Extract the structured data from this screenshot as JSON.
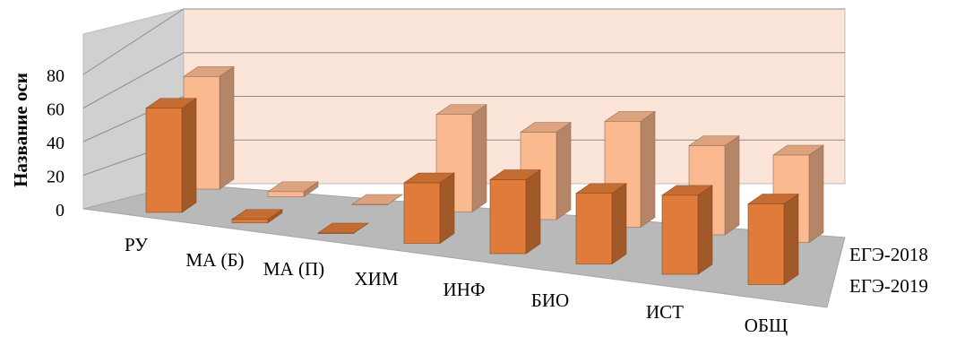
{
  "chart_data": {
    "type": "bar",
    "title": "",
    "xlabel": "",
    "ylabel": "Название оси",
    "ylim": [
      0,
      80
    ],
    "yticks": [
      0,
      20,
      40,
      60,
      80
    ],
    "categories": [
      "РУ",
      "МА (Б)",
      "МА (П)",
      "ХИМ",
      "ИНФ",
      "БИО",
      "ИСТ",
      "ОБЩ"
    ],
    "series": [
      {
        "name": "ЕГЭ-2019",
        "values": [
          62,
          2,
          0,
          36,
          44,
          42,
          47,
          48
        ]
      },
      {
        "name": "ЕГЭ-2018",
        "values": [
          67,
          3,
          0,
          58,
          52,
          63,
          53,
          52
        ]
      }
    ],
    "grid": true
  },
  "colors": {
    "front_series": "#e07b39",
    "back_series": "#fbb98f",
    "back_wall": "#fbe4d8",
    "floor": "#b9b9b9",
    "side_wall": "#d0d0d0"
  }
}
